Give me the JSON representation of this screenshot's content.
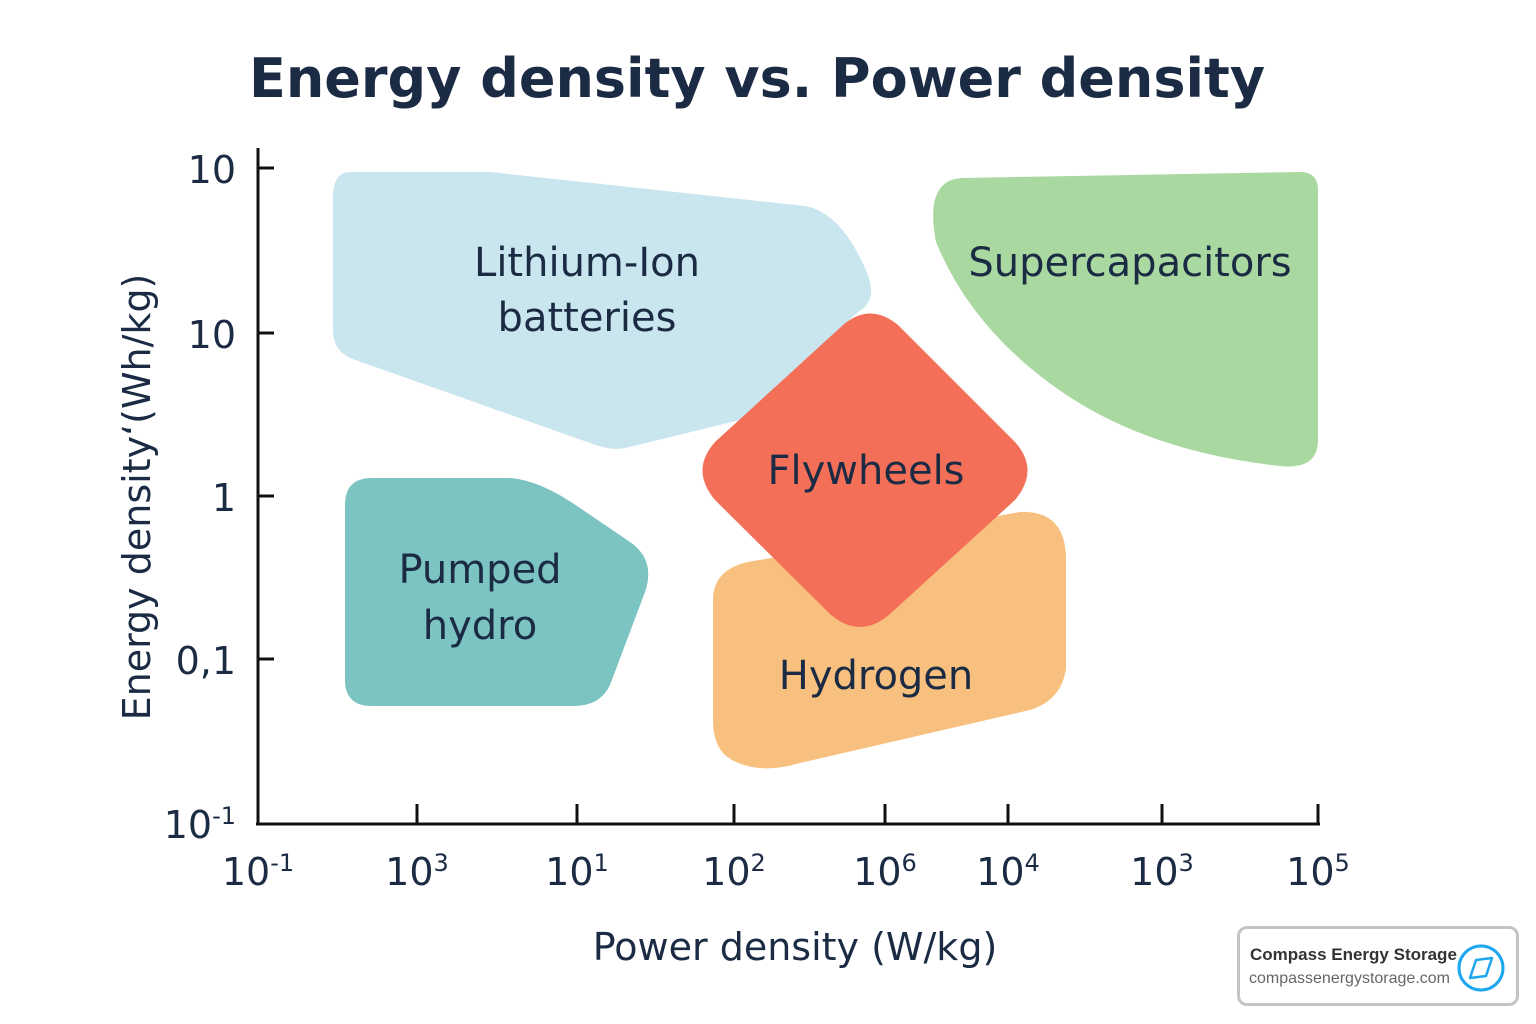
{
  "chart_data": {
    "type": "area",
    "title": "Energy density vs. Power density",
    "xlabel": "Power density (W/kg)",
    "ylabel": "Energy density‘(Wh/kg)",
    "x_tick_labels": [
      {
        "base": "10",
        "exp": "-1"
      },
      {
        "base": "10",
        "exp": "3"
      },
      {
        "base": "10",
        "exp": "1"
      },
      {
        "base": "10",
        "exp": "2"
      },
      {
        "base": "10",
        "exp": "6"
      },
      {
        "base": "10",
        "exp": "4"
      },
      {
        "base": "10",
        "exp": "3"
      },
      {
        "base": "10",
        "exp": "5"
      }
    ],
    "y_tick_labels": [
      {
        "base": "10",
        "exp": ""
      },
      {
        "base": "10",
        "exp": ""
      },
      {
        "base": "1",
        "exp": ""
      },
      {
        "base": "0,1",
        "exp": ""
      },
      {
        "base": "10",
        "exp": "-1"
      }
    ],
    "grid": false,
    "legend": "none",
    "regions": [
      {
        "name": "Lithium-Ion batteries",
        "lines": [
          "Lithium-Ion",
          "batteries"
        ],
        "color": "#c9e5ee"
      },
      {
        "name": "Supercapacitors",
        "lines": [
          "Supercapacitors"
        ],
        "color": "#a9d9a0"
      },
      {
        "name": "Pumped hydro",
        "lines": [
          "Pumped",
          "hydro"
        ],
        "color": "#7bc4c1"
      },
      {
        "name": "Hydrogen",
        "lines": [
          "Hydrogen"
        ],
        "color": "#f8c07f"
      },
      {
        "name": "Flywheels",
        "lines": [
          "Flywheels"
        ],
        "color": "#f36f58"
      }
    ]
  },
  "logo": {
    "name": "Compass Energy Storage",
    "url": "compassenergystorage.com",
    "icon": "compass-icon",
    "accent": "#1ea7f0"
  }
}
